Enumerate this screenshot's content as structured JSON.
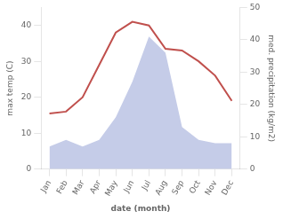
{
  "chart_data": {
    "type": "line",
    "xlabel": "date (month)",
    "ylabel": "max temp (C)",
    "y2label": "med. precipitation (kg/m2)",
    "categories": [
      "Jan",
      "Feb",
      "Mar",
      "Apr",
      "May",
      "Jun",
      "Jul",
      "Aug",
      "Sep",
      "Oct",
      "Nov",
      "Dec"
    ],
    "series": [
      {
        "type": "line",
        "color": "#c0504d",
        "values": [
          15.5,
          16,
          20,
          29,
          38,
          41,
          40,
          33.5,
          33,
          30,
          26,
          19
        ]
      },
      {
        "type": "area",
        "color": "#c5cce8",
        "axis": "y2",
        "values": [
          7,
          9,
          7,
          9,
          16,
          27,
          41,
          36,
          13,
          9,
          8,
          8
        ]
      }
    ],
    "ylim": [
      0,
      45
    ],
    "yticks": [
      0,
      10,
      20,
      30,
      40
    ],
    "y2lim": [
      0,
      50
    ],
    "y2ticks": [
      0,
      10,
      20,
      30,
      40,
      50
    ],
    "grid": false
  }
}
